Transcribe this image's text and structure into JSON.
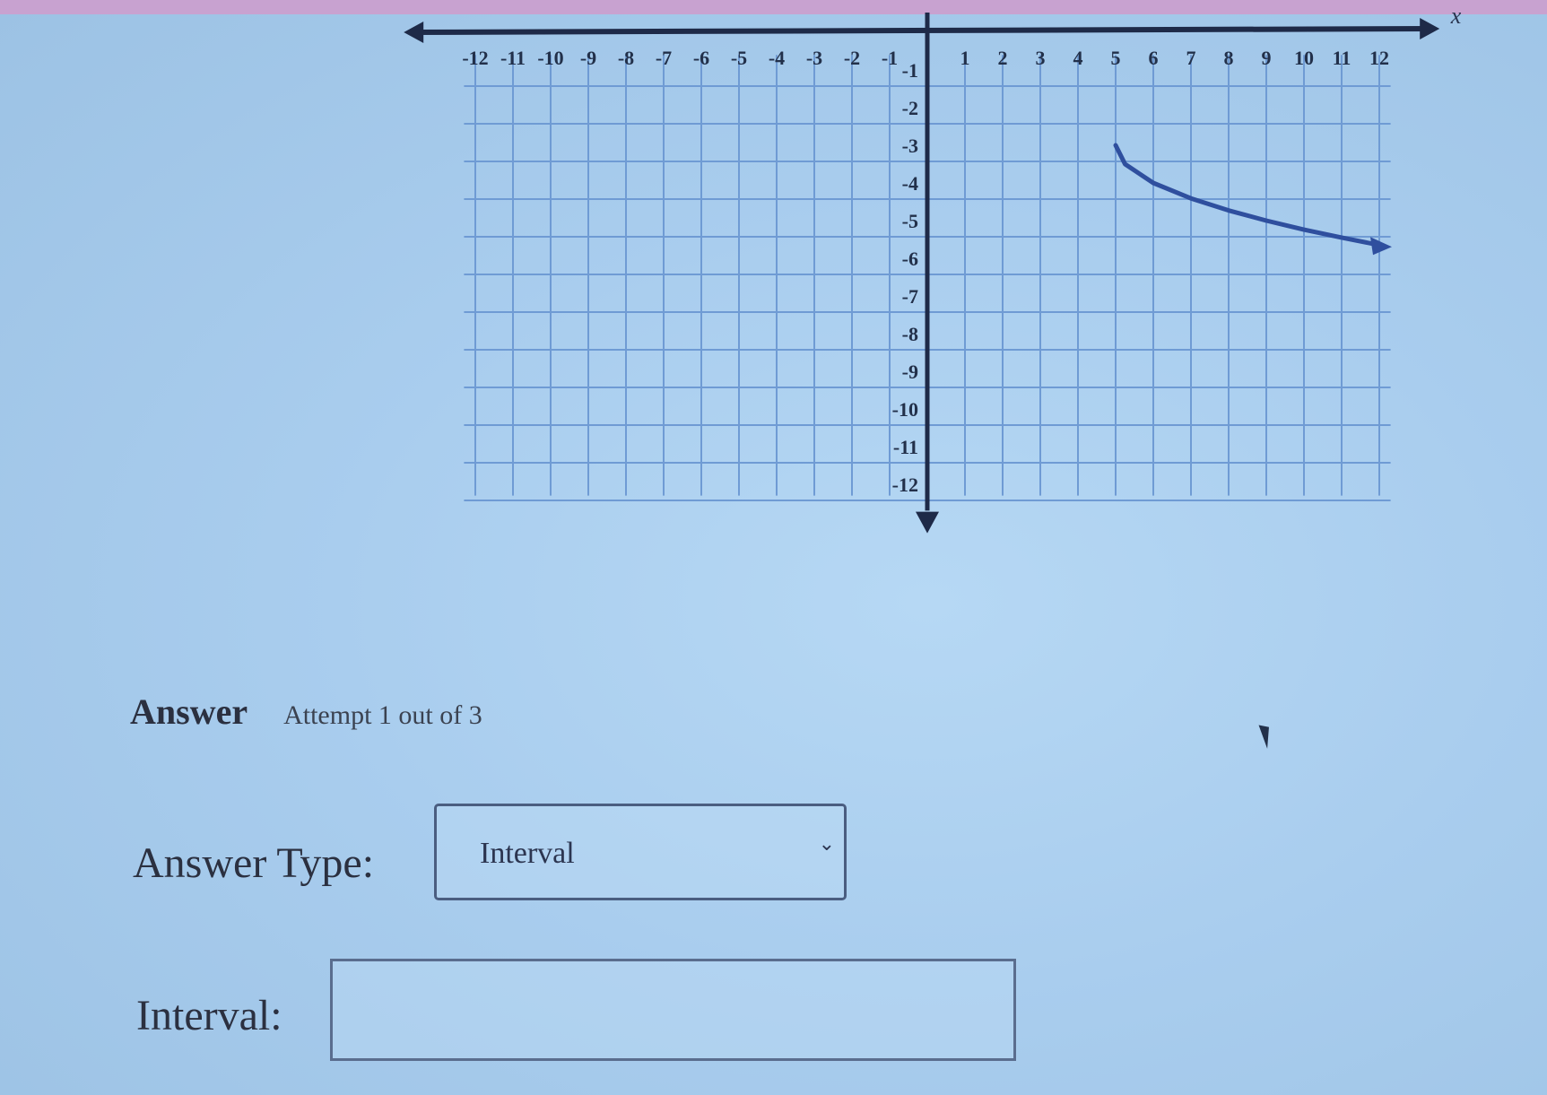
{
  "graph": {
    "x_axis_label": "x",
    "x_ticks": [
      -12,
      -11,
      -10,
      -9,
      -8,
      -7,
      -6,
      -5,
      -4,
      -3,
      -2,
      -1,
      1,
      2,
      3,
      4,
      5,
      6,
      7,
      8,
      9,
      10,
      11,
      12
    ],
    "y_ticks": [
      -1,
      -2,
      -3,
      -4,
      -5,
      -6,
      -7,
      -8,
      -9,
      -10,
      -11,
      -12
    ],
    "curve_color": "#2f4f9e",
    "curve": {
      "start": [
        5,
        -3
      ],
      "points": [
        [
          5,
          -3
        ],
        [
          5.25,
          -3.5
        ],
        [
          6,
          -4
        ],
        [
          7,
          -4.41
        ],
        [
          8,
          -4.73
        ],
        [
          9,
          -5
        ],
        [
          10,
          -5.24
        ],
        [
          11,
          -5.45
        ],
        [
          12,
          -5.65
        ]
      ],
      "end_arrow": true
    }
  },
  "answer": {
    "title": "Answer",
    "attempt": "Attempt 1 out of 3"
  },
  "answer_type": {
    "label": "Answer Type:",
    "selected": "Interval"
  },
  "interval": {
    "label": "Interval:",
    "value": ""
  }
}
